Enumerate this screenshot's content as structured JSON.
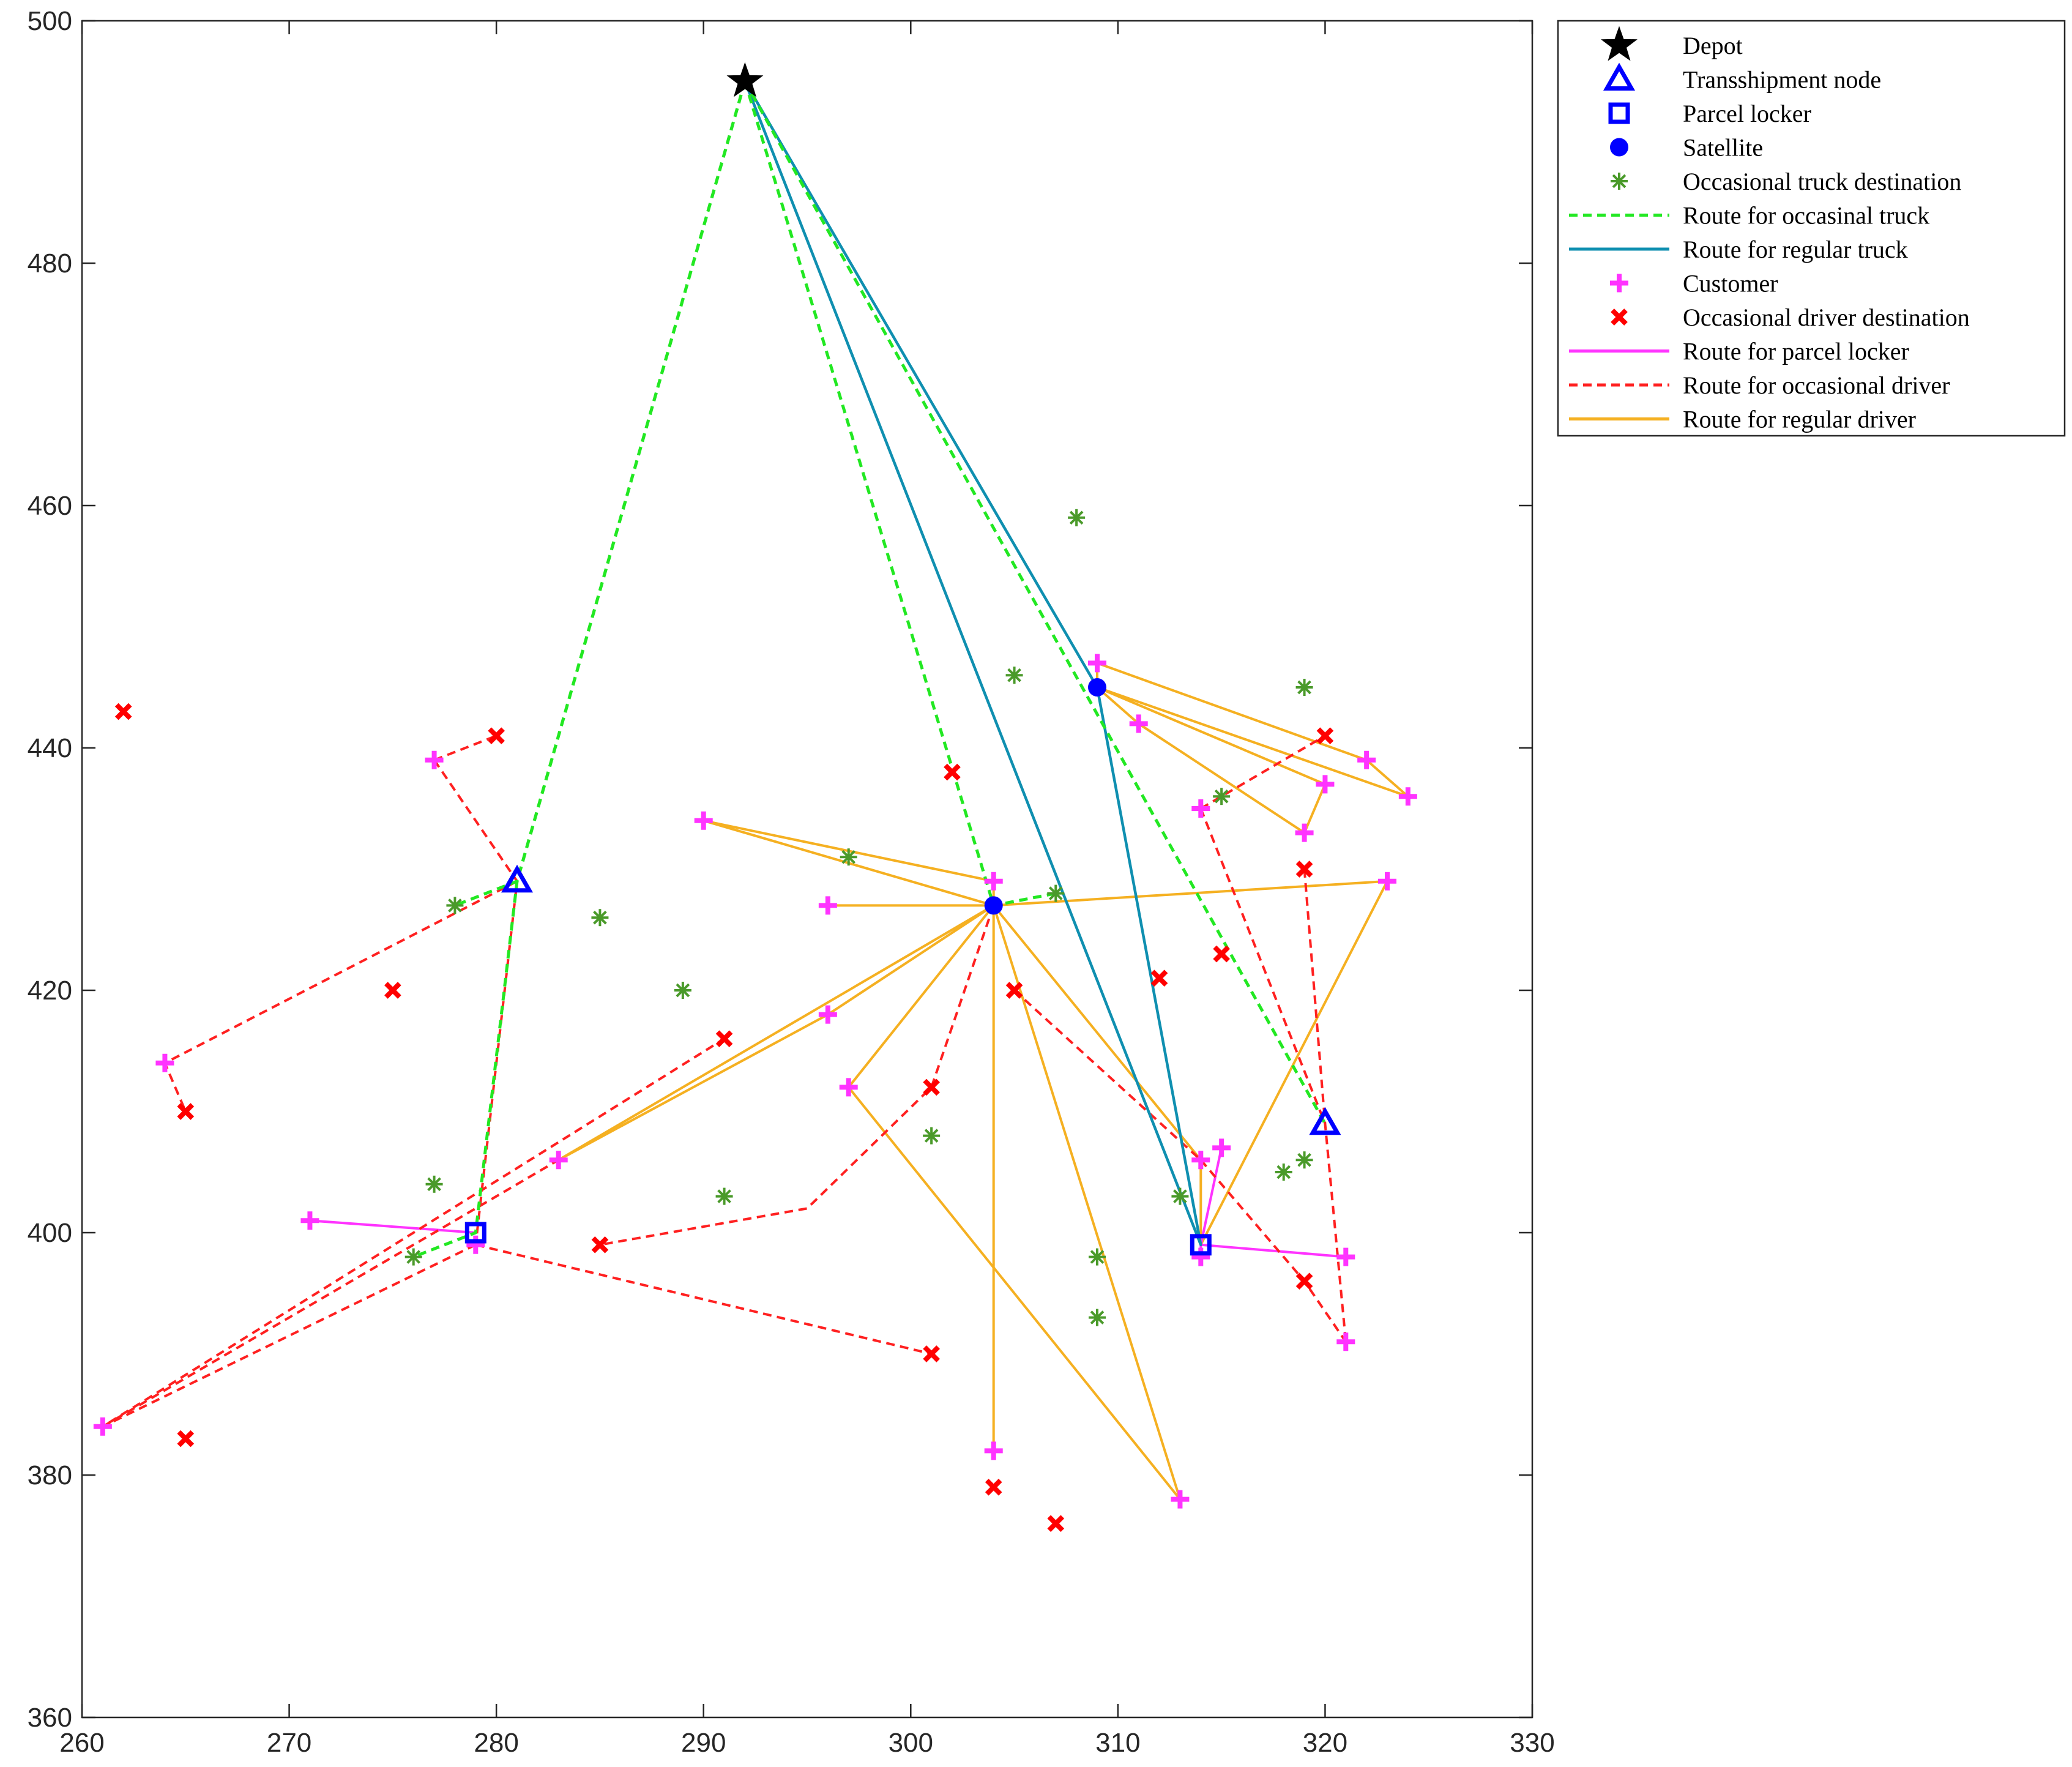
{
  "chart_data": {
    "type": "scatter",
    "title": "",
    "xlabel": "",
    "ylabel": "",
    "xlim": [
      260,
      330
    ],
    "ylim": [
      360,
      500
    ],
    "xticks": [
      260,
      270,
      280,
      290,
      300,
      310,
      320,
      330
    ],
    "yticks": [
      360,
      380,
      400,
      420,
      440,
      460,
      480,
      500
    ],
    "grid": false,
    "legend_position": "outside-top-right",
    "legend": [
      {
        "label": "Depot",
        "marker": "star",
        "color": "#000000",
        "style": "marker"
      },
      {
        "label": "Transshipment node",
        "marker": "triangle",
        "color": "#0000ff",
        "style": "marker"
      },
      {
        "label": "Parcel locker",
        "marker": "square",
        "color": "#0000ff",
        "style": "marker"
      },
      {
        "label": "Satellite",
        "marker": "dot",
        "color": "#0000ff",
        "style": "marker"
      },
      {
        "label": "Occasional truck destination",
        "marker": "asterisk",
        "color": "#4a9a2a",
        "style": "marker"
      },
      {
        "label": "Route for occasinal truck",
        "color": "#22e822",
        "style": "dashed"
      },
      {
        "label": "Route for regular truck",
        "color": "#0f8fb0",
        "style": "solid"
      },
      {
        "label": "Customer",
        "marker": "plus",
        "color": "#ff33ff",
        "style": "marker"
      },
      {
        "label": "Occasional driver destination",
        "marker": "cross",
        "color": "#ff0000",
        "style": "marker"
      },
      {
        "label": "Route for parcel locker",
        "color": "#ff33ff",
        "style": "solid"
      },
      {
        "label": "Route for occasional driver",
        "color": "#ff2020",
        "style": "dashed"
      },
      {
        "label": "Route for regular driver",
        "color": "#f5b021",
        "style": "solid"
      }
    ],
    "points": {
      "depot": [
        [
          292,
          495
        ]
      ],
      "transshipment_nodes": [
        [
          281,
          429
        ],
        [
          320,
          409
        ]
      ],
      "parcel_lockers": [
        [
          279,
          400
        ],
        [
          314,
          399
        ]
      ],
      "satellites": [
        [
          309,
          445
        ],
        [
          304,
          427
        ]
      ],
      "occasional_truck_destinations": [
        [
          308,
          459
        ],
        [
          305,
          446
        ],
        [
          319,
          445
        ],
        [
          297,
          431
        ],
        [
          315,
          436
        ],
        [
          278,
          427
        ],
        [
          285,
          426
        ],
        [
          307,
          428
        ],
        [
          289,
          420
        ],
        [
          301,
          408
        ],
        [
          277,
          404
        ],
        [
          291,
          403
        ],
        [
          313,
          403
        ],
        [
          318,
          405
        ],
        [
          319,
          406
        ],
        [
          276,
          398
        ],
        [
          309,
          398
        ],
        [
          309,
          393
        ]
      ],
      "customers": [
        [
          309,
          447
        ],
        [
          311,
          442
        ],
        [
          322,
          439
        ],
        [
          320,
          437
        ],
        [
          324,
          436
        ],
        [
          314,
          435
        ],
        [
          319,
          433
        ],
        [
          290,
          434
        ],
        [
          277,
          439
        ],
        [
          304,
          429
        ],
        [
          323,
          429
        ],
        [
          296,
          427
        ],
        [
          296,
          418
        ],
        [
          264,
          414
        ],
        [
          297,
          412
        ],
        [
          283,
          406
        ],
        [
          314,
          406
        ],
        [
          315,
          407
        ],
        [
          271,
          401
        ],
        [
          279,
          399
        ],
        [
          314,
          398
        ],
        [
          321,
          398
        ],
        [
          321,
          391
        ],
        [
          261,
          384
        ],
        [
          304,
          382
        ],
        [
          313,
          378
        ]
      ],
      "occasional_driver_destinations": [
        [
          262,
          443
        ],
        [
          280,
          441
        ],
        [
          320,
          441
        ],
        [
          302,
          438
        ],
        [
          319,
          430
        ],
        [
          275,
          420
        ],
        [
          305,
          420
        ],
        [
          312,
          421
        ],
        [
          315,
          423
        ],
        [
          291,
          416
        ],
        [
          265,
          410
        ],
        [
          301,
          412
        ],
        [
          285,
          399
        ],
        [
          319,
          396
        ],
        [
          301,
          390
        ],
        [
          265,
          383
        ],
        [
          304,
          379
        ],
        [
          307,
          376
        ]
      ]
    },
    "routes": {
      "occasional_truck": [
        [
          [
            292,
            495
          ],
          [
            281,
            429
          ],
          [
            279,
            400
          ],
          [
            276,
            398
          ]
        ],
        [
          [
            292,
            495
          ],
          [
            281,
            429
          ],
          [
            278,
            427
          ]
        ],
        [
          [
            292,
            495
          ],
          [
            304,
            427
          ],
          [
            307,
            428
          ]
        ],
        [
          [
            292,
            495
          ],
          [
            320,
            409
          ]
        ]
      ],
      "regular_truck": [
        [
          [
            292,
            495
          ],
          [
            309,
            445
          ],
          [
            314,
            399
          ],
          [
            292,
            495
          ]
        ]
      ],
      "parcel_locker": [
        [
          [
            279,
            400
          ],
          [
            271,
            401
          ]
        ],
        [
          [
            314,
            399
          ],
          [
            315,
            407
          ]
        ],
        [
          [
            314,
            399
          ],
          [
            314,
            398
          ]
        ],
        [
          [
            314,
            399
          ],
          [
            321,
            398
          ]
        ]
      ],
      "occasional_driver": [
        [
          [
            277,
            439
          ],
          [
            280,
            441
          ]
        ],
        [
          [
            277,
            439
          ],
          [
            281,
            429
          ],
          [
            279,
            399
          ]
        ],
        [
          [
            281,
            429
          ],
          [
            264,
            414
          ],
          [
            265,
            410
          ]
        ],
        [
          [
            279,
            399
          ],
          [
            301,
            390
          ]
        ],
        [
          [
            279,
            399
          ],
          [
            261,
            384
          ],
          [
            291,
            416
          ]
        ],
        [
          [
            261,
            384
          ],
          [
            283,
            406
          ]
        ],
        [
          [
            304,
            427
          ],
          [
            301,
            412
          ],
          [
            295,
            402
          ],
          [
            285,
            399
          ]
        ],
        [
          [
            314,
            435
          ],
          [
            320,
            441
          ]
        ],
        [
          [
            314,
            435
          ],
          [
            320,
            409
          ]
        ],
        [
          [
            319,
            430
          ],
          [
            320,
            409
          ],
          [
            321,
            391
          ]
        ],
        [
          [
            305,
            420
          ],
          [
            314,
            406
          ]
        ],
        [
          [
            314,
            406
          ],
          [
            319,
            396
          ],
          [
            321,
            391
          ]
        ]
      ],
      "regular_driver": [
        [
          [
            309,
            445
          ],
          [
            309,
            447
          ],
          [
            322,
            439
          ],
          [
            324,
            436
          ],
          [
            309,
            445
          ]
        ],
        [
          [
            309,
            445
          ],
          [
            311,
            442
          ],
          [
            319,
            433
          ],
          [
            320,
            437
          ]
        ],
        [
          [
            309,
            445
          ],
          [
            320,
            437
          ]
        ],
        [
          [
            304,
            427
          ],
          [
            290,
            434
          ],
          [
            304,
            429
          ],
          [
            304,
            427
          ]
        ],
        [
          [
            304,
            427
          ],
          [
            296,
            427
          ]
        ],
        [
          [
            304,
            427
          ],
          [
            323,
            429
          ],
          [
            314,
            399
          ]
        ],
        [
          [
            304,
            427
          ],
          [
            296,
            418
          ],
          [
            283,
            406
          ],
          [
            304,
            427
          ]
        ],
        [
          [
            304,
            427
          ],
          [
            297,
            412
          ],
          [
            313,
            378
          ],
          [
            304,
            427
          ]
        ],
        [
          [
            304,
            427
          ],
          [
            304,
            382
          ]
        ],
        [
          [
            304,
            427
          ],
          [
            314,
            406
          ],
          [
            314,
            399
          ]
        ]
      ]
    }
  }
}
